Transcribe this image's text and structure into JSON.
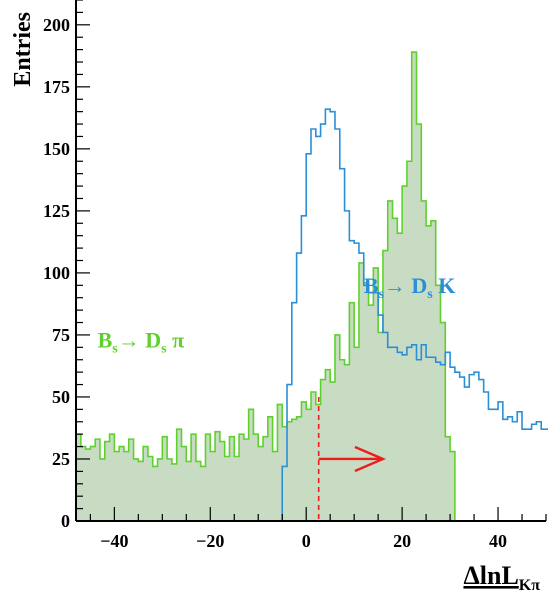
{
  "chart_data": {
    "type": "histogram",
    "xlabel": "ΔlnL",
    "xlabel_sub": "Kπ",
    "ylabel": "Entries",
    "xlim": [
      -48,
      50
    ],
    "ylim": [
      0,
      210
    ],
    "x_ticks": [
      -40,
      -20,
      0,
      20,
      40
    ],
    "y_ticks": [
      0,
      25,
      50,
      75,
      100,
      125,
      150,
      175,
      200
    ],
    "bin_width": 1,
    "series": [
      {
        "name": "Bs → Ds π",
        "color": "#5fd12e",
        "fill": "#c8dcc3",
        "filled": true,
        "x_start": -48,
        "values": [
          35,
          30,
          29,
          30,
          33,
          25,
          32,
          35,
          28,
          30,
          28,
          33,
          25,
          24,
          30,
          26,
          22,
          25,
          34,
          25,
          23,
          37,
          30,
          24,
          35,
          24,
          22,
          35,
          28,
          36,
          32,
          26,
          34,
          26,
          35,
          33,
          45,
          35,
          30,
          34,
          42,
          28,
          47,
          38,
          40,
          41,
          42,
          48,
          45,
          52,
          47,
          57,
          61,
          56,
          75,
          65,
          63,
          88,
          70,
          104,
          96,
          87,
          102,
          76,
          109,
          129,
          122,
          116,
          135,
          145,
          189,
          160,
          129,
          119,
          121,
          95,
          80,
          34,
          28,
          0
        ]
      },
      {
        "name": "Bs → Ds K",
        "color": "#2b8fd8",
        "filled": false,
        "x_start": -6,
        "values": [
          0,
          22,
          55,
          88,
          108,
          123,
          148,
          158,
          155,
          160,
          166,
          165,
          158,
          142,
          125,
          113,
          112,
          108,
          95,
          92,
          92,
          83,
          76,
          70,
          70,
          68,
          67,
          70,
          71,
          65,
          71,
          66,
          66,
          64,
          63,
          68,
          62,
          60,
          58,
          54,
          59,
          60,
          57,
          52,
          45,
          45,
          48,
          41,
          42,
          40,
          44,
          37,
          37,
          39,
          40,
          37,
          37,
          38,
          43,
          38
        ]
      }
    ],
    "annotations": [
      {
        "text_main": "B",
        "text_sub1": "s",
        "text_arrow": "→ D",
        "text_sub2": "s",
        "text_tail": " π",
        "color": "#5fd12e",
        "anchor_x": -43.5,
        "anchor_y": 70
      },
      {
        "text_main": "B",
        "text_sub1": "s",
        "text_arrow": "→ D",
        "text_sub2": "s",
        "text_tail": " K",
        "color": "#2b8fd8",
        "anchor_x": 12,
        "anchor_y": 92
      }
    ],
    "cut": {
      "x": 2.6,
      "y_top": 50,
      "arrow_y": 25,
      "arrow_to": 16,
      "color": "#ee1c1c"
    },
    "grid": false,
    "legend": "none"
  }
}
